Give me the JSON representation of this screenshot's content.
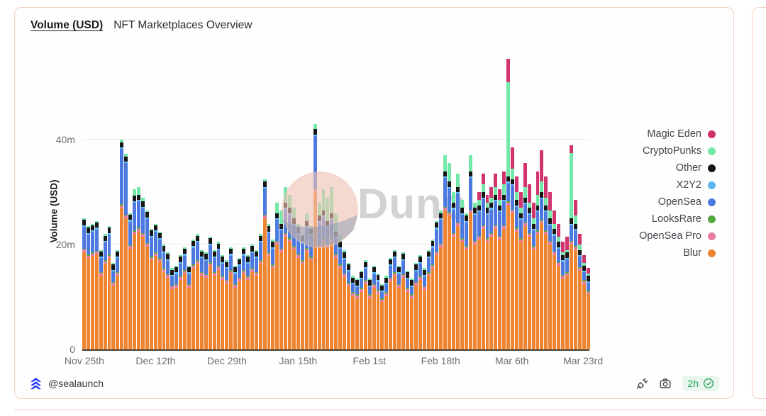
{
  "card": {
    "title": "Volume (USD)",
    "subtitle": "NFT Marketplaces Overview",
    "footer": {
      "handle": "@sealaunch",
      "freshness": "2h"
    }
  },
  "watermark": {
    "text": "Dune"
  },
  "colors": {
    "card_border": "#f5cfc0",
    "axis_line": "#45443a",
    "gridline": "#ececec",
    "tick_text": "#6f6f6f",
    "freshness_green": "#2aa35f",
    "logo_blue": "#2236f5"
  },
  "legend": [
    {
      "label": "Magic Eden",
      "color": "#D0336E"
    },
    {
      "label": "CryptoPunks",
      "color": "#73E9A9"
    },
    {
      "label": "Other",
      "color": "#161616"
    },
    {
      "label": "X2Y2",
      "color": "#5BB7F0"
    },
    {
      "label": "OpenSea",
      "color": "#4C79E0"
    },
    {
      "label": "LooksRare",
      "color": "#54A93F"
    },
    {
      "label": "OpenSea Pro",
      "color": "#E87BA6"
    },
    {
      "label": "Blur",
      "color": "#EE8430"
    }
  ],
  "chart_data": {
    "type": "bar",
    "stacked": true,
    "title": "Volume (USD) — NFT Marketplaces Overview",
    "ylabel": "Volume (USD)",
    "unit": "million USD per day",
    "grid": "horizontal",
    "legend_position": "right",
    "days": 121,
    "date_range": "daily bars, Nov 25 through Mar 24",
    "ylim": [
      0,
      58.4
    ],
    "y_ticks": [
      {
        "label": "0",
        "value": 0
      },
      {
        "label": "20m",
        "value": 20
      },
      {
        "label": "40m",
        "value": 40
      }
    ],
    "x_ticks": [
      {
        "label": "Nov 25th",
        "day": 0
      },
      {
        "label": "Dec 12th",
        "day": 17
      },
      {
        "label": "Dec 29th",
        "day": 34
      },
      {
        "label": "Jan 15th",
        "day": 51
      },
      {
        "label": "Feb 1st",
        "day": 68
      },
      {
        "label": "Feb 18th",
        "day": 85
      },
      {
        "label": "Mar 6th",
        "day": 102
      },
      {
        "label": "Mar 23rd",
        "day": 119
      }
    ],
    "series": [
      {
        "name": "Blur",
        "color": "#EE8430",
        "values": [
          18.5,
          17.4,
          17.8,
          18.1,
          14.1,
          16.3,
          17.4,
          12.2,
          14.1,
          27.0,
          25.0,
          19.2,
          22.0,
          22.5,
          21.5,
          19.6,
          17.0,
          17.8,
          16.7,
          14.8,
          13.7,
          11.5,
          11.8,
          13.3,
          14.4,
          11.8,
          15.5,
          16.3,
          14.1,
          13.7,
          15.9,
          14.1,
          15.2,
          13.3,
          12.6,
          14.4,
          11.8,
          13.0,
          14.4,
          13.3,
          14.8,
          14.1,
          16.3,
          25.0,
          17.8,
          15.5,
          20.0,
          18.5,
          21.5,
          20.5,
          19.0,
          17.5,
          16.3,
          18.6,
          17.0,
          30.0,
          19.5,
          20.5,
          19.5,
          20.5,
          17.5,
          15.5,
          13.8,
          12.0,
          10.2,
          9.8,
          11.0,
          12.5,
          9.8,
          11.8,
          10.6,
          9.0,
          10.2,
          13.0,
          14.0,
          11.8,
          13.7,
          11.0,
          9.8,
          12.2,
          13.3,
          11.4,
          14.0,
          15.5,
          18.0,
          19.5,
          26.5,
          25.5,
          21.5,
          23.5,
          20.5,
          19.0,
          26.0,
          20.0,
          21.0,
          23.0,
          20.5,
          21.5,
          23.0,
          21.0,
          23.0,
          27.5,
          26.0,
          22.5,
          20.5,
          23.5,
          21.5,
          19.0,
          22.0,
          24.0,
          22.0,
          20.0,
          18.0,
          16.0,
          13.5,
          14.0,
          20.0,
          19.0,
          15.0,
          12.5,
          10.5
        ]
      },
      {
        "name": "OpenSea Pro",
        "color": "#E87BA6",
        "constant": 0.5
      },
      {
        "name": "LooksRare",
        "color": "#54A93F",
        "constant": 0.2
      },
      {
        "name": "OpenSea",
        "color": "#4C79E0",
        "values": [
          4.2,
          3.8,
          3.9,
          4.1,
          2.6,
          3.4,
          3.8,
          2.0,
          2.6,
          10.5,
          9.8,
          4.5,
          5.3,
          5.0,
          4.7,
          4.6,
          3.7,
          3.9,
          3.5,
          2.9,
          2.5,
          1.7,
          1.9,
          2.4,
          2.8,
          1.9,
          3.2,
          3.4,
          2.6,
          2.5,
          3.3,
          2.6,
          3.0,
          2.4,
          2.1,
          2.8,
          1.9,
          2.2,
          2.8,
          2.4,
          2.9,
          2.6,
          3.4,
          5.0,
          3.7,
          3.0,
          4.0,
          3.5,
          4.5,
          4.5,
          4.0,
          3.7,
          3.4,
          3.9,
          4.0,
          10.0,
          4.0,
          4.0,
          3.0,
          3.5,
          3.0,
          3.0,
          2.7,
          2.2,
          1.5,
          1.4,
          1.7,
          2.2,
          1.4,
          1.9,
          1.6,
          1.2,
          1.5,
          2.2,
          2.7,
          1.9,
          2.5,
          1.7,
          1.4,
          2.0,
          2.4,
          1.8,
          2.7,
          3.2,
          4.2,
          4.5,
          5.5,
          4.5,
          4.5,
          5.5,
          4.5,
          4.5,
          6.0,
          5.0,
          4.5,
          5.0,
          4.5,
          4.5,
          4.5,
          4.5,
          4.5,
          3.5,
          4.5,
          4.0,
          3.5,
          3.5,
          3.5,
          3.0,
          3.5,
          4.0,
          3.5,
          3.0,
          3.0,
          2.5,
          2.5,
          2.5,
          3.0,
          3.0,
          2.0,
          1.5,
          1.5
        ]
      },
      {
        "name": "X2Y2",
        "color": "#5BB7F0",
        "constant": 0.3
      },
      {
        "name": "Other",
        "color": "#161616",
        "constant": 1.0
      },
      {
        "name": "CryptoPunks",
        "color": "#73E9A9",
        "values": [
          0.3,
          0.3,
          0.3,
          0.3,
          0.3,
          0.3,
          0.3,
          0.3,
          0.3,
          0.5,
          0.5,
          0.3,
          1.2,
          1.5,
          0.8,
          0.3,
          0.3,
          0.3,
          0.3,
          0.3,
          0.3,
          0.3,
          0.3,
          0.3,
          0.3,
          0.3,
          0.3,
          0.3,
          0.3,
          0.3,
          0.3,
          0.3,
          0.3,
          0.3,
          0.3,
          0.3,
          0.3,
          0.3,
          0.3,
          0.3,
          0.3,
          0.3,
          0.3,
          0.5,
          0.5,
          0.5,
          2.0,
          2.5,
          3.0,
          2.5,
          2.0,
          0.8,
          0.3,
          1.5,
          0.5,
          1.0,
          2.5,
          4.0,
          4.5,
          5.0,
          3.5,
          1.5,
          0.5,
          0.3,
          0.3,
          0.3,
          0.3,
          0.3,
          0.3,
          0.3,
          0.3,
          0.3,
          0.3,
          0.3,
          0.3,
          0.3,
          0.3,
          0.3,
          0.3,
          0.3,
          0.3,
          0.3,
          0.3,
          0.3,
          0.3,
          0.5,
          3.0,
          3.5,
          2.0,
          2.5,
          1.5,
          0.5,
          3.0,
          1.0,
          1.0,
          1.5,
          1.0,
          1.0,
          1.5,
          1.0,
          2.0,
          18.0,
          2.0,
          1.5,
          1.0,
          2.0,
          1.0,
          1.0,
          2.0,
          2.0,
          1.5,
          1.5,
          1.0,
          1.0,
          0.5,
          0.5,
          12.5,
          1.5,
          1.0,
          0.5,
          0.5
        ]
      },
      {
        "name": "Magic Eden",
        "color": "#D0336E",
        "values": [
          0,
          0,
          0,
          0,
          0,
          0,
          0,
          0,
          0,
          0,
          0,
          0,
          0,
          0,
          0,
          0,
          0,
          0,
          0,
          0,
          0,
          0,
          0,
          0,
          0,
          0,
          0,
          0,
          0,
          0,
          0,
          0,
          0,
          0,
          0,
          0,
          0,
          0,
          0,
          0,
          0,
          0,
          0,
          0,
          0,
          0,
          0,
          0,
          0,
          0,
          0,
          0,
          0,
          0,
          0,
          0,
          0,
          0,
          0,
          0,
          0,
          0,
          0,
          0,
          0,
          0,
          0,
          0,
          0,
          0,
          0,
          0,
          0,
          0,
          0,
          0,
          0,
          0,
          0,
          0,
          0,
          0,
          0,
          0,
          0,
          0,
          0,
          0,
          0,
          0,
          0,
          0,
          0,
          0,
          1.5,
          2.0,
          1.5,
          2.0,
          2.5,
          2.0,
          2.5,
          4.5,
          4.0,
          3.0,
          3.0,
          4.5,
          3.5,
          3.0,
          4.5,
          6.0,
          4.0,
          3.5,
          2.5,
          2.5,
          2.0,
          2.5,
          1.5,
          3.0,
          2.0,
          1.5,
          1.0
        ]
      }
    ]
  }
}
